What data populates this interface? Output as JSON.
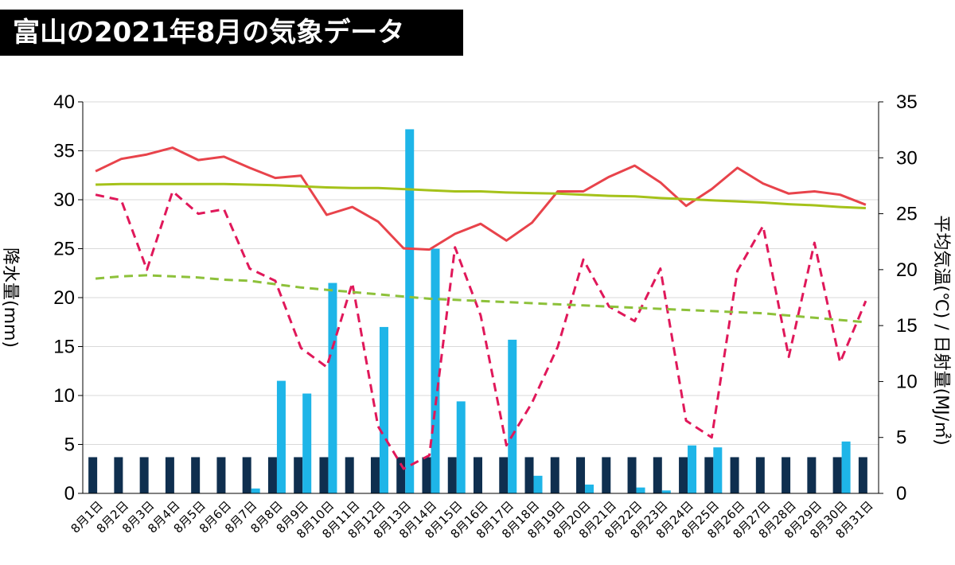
{
  "title": "富山の2021年8月の気象データ",
  "colors": {
    "precip": "#1eb5e8",
    "sunshine": "#0f2f4f",
    "max_temp": "#e8434b",
    "min_temp": "#e0185a",
    "avg_temp_normal": "#a5c21a",
    "min_temp_normal": "#8dc13a"
  },
  "chart_data": {
    "type": "bar",
    "categories": [
      "8月1日",
      "8月2日",
      "8月3日",
      "8月4日",
      "8月5日",
      "8月6日",
      "8月7日",
      "8月8日",
      "8月9日",
      "8月10日",
      "8月11日",
      "8月12日",
      "8月13日",
      "8月14日",
      "8月15日",
      "8月16日",
      "8月17日",
      "8月18日",
      "8月19日",
      "8月20日",
      "8月21日",
      "8月22日",
      "8月23日",
      "8月24日",
      "8月25日",
      "8月26日",
      "8月27日",
      "8月28日",
      "8月29日",
      "8月30日",
      "8月31日"
    ],
    "ylabel_left": "降水量(mm)",
    "ylabel_right": "平均気温(℃) / 日射量(MJ/㎡)",
    "ylim_left": [
      0,
      40
    ],
    "ylim_right": [
      0,
      35
    ],
    "yticks_left": [
      0,
      5,
      10,
      15,
      20,
      25,
      30,
      35,
      40
    ],
    "yticks_right": [
      0,
      5,
      10,
      15,
      20,
      25,
      30,
      35
    ],
    "grid": true,
    "series": [
      {
        "type": "bar",
        "axis": "left",
        "color_key": "sunshine",
        "values": [
          3.7,
          3.7,
          3.7,
          3.7,
          3.7,
          3.7,
          3.7,
          3.7,
          3.7,
          3.7,
          3.7,
          3.7,
          3.7,
          3.7,
          3.7,
          3.7,
          3.7,
          3.7,
          3.7,
          3.7,
          3.7,
          3.7,
          3.7,
          3.7,
          3.7,
          3.7,
          3.7,
          3.7,
          3.7,
          3.7,
          3.7
        ]
      },
      {
        "type": "bar",
        "axis": "left",
        "color_key": "precip",
        "values": [
          0,
          0,
          0,
          0,
          0,
          0,
          0.5,
          11.5,
          10.2,
          21.5,
          0,
          17,
          37.2,
          25,
          9.4,
          0,
          15.7,
          1.8,
          0,
          0.9,
          0,
          0.6,
          0.3,
          4.9,
          4.7,
          0,
          0,
          0,
          0,
          5.3,
          0
        ]
      },
      {
        "type": "line",
        "axis": "right",
        "color_key": "max_temp",
        "dash": false,
        "values": [
          28.8,
          29.9,
          30.3,
          30.9,
          29.8,
          30.1,
          29.1,
          28.2,
          28.4,
          24.9,
          25.6,
          24.3,
          21.9,
          21.8,
          23.2,
          24.1,
          22.6,
          24.2,
          27.0,
          27.0,
          28.3,
          29.3,
          27.8,
          25.7,
          27.2,
          29.1,
          27.7,
          26.8,
          27.0,
          26.7,
          25.8
        ]
      },
      {
        "type": "line",
        "axis": "right",
        "color_key": "min_temp",
        "dash": true,
        "values": [
          26.7,
          26.2,
          20.0,
          27.0,
          25.0,
          25.4,
          20.1,
          19.0,
          13.0,
          11.3,
          18.8,
          6.0,
          2.2,
          3.4,
          22.0,
          15.9,
          4.3,
          8.1,
          13.1,
          20.9,
          16.7,
          15.4,
          20.1,
          6.5,
          5.0,
          19.9,
          23.9,
          12.2,
          22.4,
          11.7,
          17.2
        ]
      },
      {
        "type": "line",
        "axis": "right",
        "color_key": "avg_temp_normal",
        "dash": false,
        "values": [
          27.6,
          27.65,
          27.65,
          27.65,
          27.65,
          27.65,
          27.6,
          27.55,
          27.45,
          27.35,
          27.3,
          27.3,
          27.2,
          27.1,
          27.0,
          27.0,
          26.9,
          26.85,
          26.8,
          26.7,
          26.6,
          26.55,
          26.4,
          26.3,
          26.2,
          26.1,
          26.0,
          25.85,
          25.75,
          25.6,
          25.5
        ]
      },
      {
        "type": "line",
        "axis": "right",
        "color_key": "min_temp_normal",
        "dash": true,
        "values": [
          19.2,
          19.4,
          19.5,
          19.4,
          19.3,
          19.1,
          19.0,
          18.7,
          18.4,
          18.2,
          18.0,
          17.8,
          17.6,
          17.4,
          17.3,
          17.2,
          17.1,
          17.0,
          16.9,
          16.8,
          16.7,
          16.6,
          16.5,
          16.4,
          16.3,
          16.2,
          16.1,
          15.9,
          15.7,
          15.5,
          15.3
        ]
      }
    ]
  }
}
